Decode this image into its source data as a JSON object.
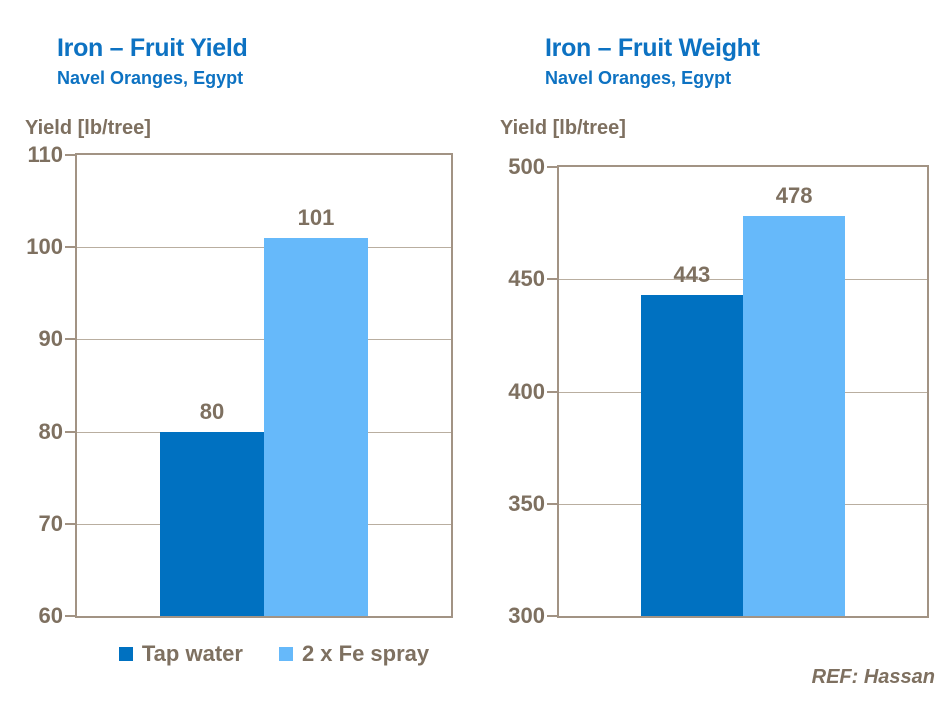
{
  "page": {
    "footer_ref": "REF: Hassan",
    "background": "#ffffff"
  },
  "colors": {
    "title_blue": "#0d72c2",
    "text_brown": "#7e7060",
    "axis_line": "#a29384",
    "grid_line": "#b9aea0",
    "series": [
      "#0071c1",
      "#66b9fa"
    ]
  },
  "chart_data": [
    {
      "type": "bar",
      "title": "Iron – Fruit Yield",
      "subtitle": "Navel Oranges, Egypt",
      "ylabel": "Yield [lb/tree]",
      "ylim": [
        60,
        110
      ],
      "yticks": [
        60,
        70,
        80,
        90,
        100,
        110
      ],
      "categories": [
        "Tap water",
        "2 x Fe spray"
      ],
      "values": [
        80,
        101
      ],
      "series": [
        {
          "name": "Tap water",
          "values": [
            80
          ]
        },
        {
          "name": "2 x Fe spray",
          "values": [
            101
          ]
        }
      ],
      "grid": true,
      "legend_visible": true,
      "legend_position": "bottom"
    },
    {
      "type": "bar",
      "title": "Iron – Fruit Weight",
      "subtitle": "Navel Oranges, Egypt",
      "ylabel": "Yield [lb/tree]",
      "ylim": [
        300,
        500
      ],
      "yticks": [
        300,
        350,
        400,
        450,
        500
      ],
      "categories": [
        "Tap water",
        "2 x Fe spray"
      ],
      "values": [
        443,
        478
      ],
      "series": [
        {
          "name": "Tap water",
          "values": [
            443
          ]
        },
        {
          "name": "2 x Fe spray",
          "values": [
            478
          ]
        }
      ],
      "grid": true,
      "legend_visible": false,
      "legend_position": "none"
    }
  ]
}
